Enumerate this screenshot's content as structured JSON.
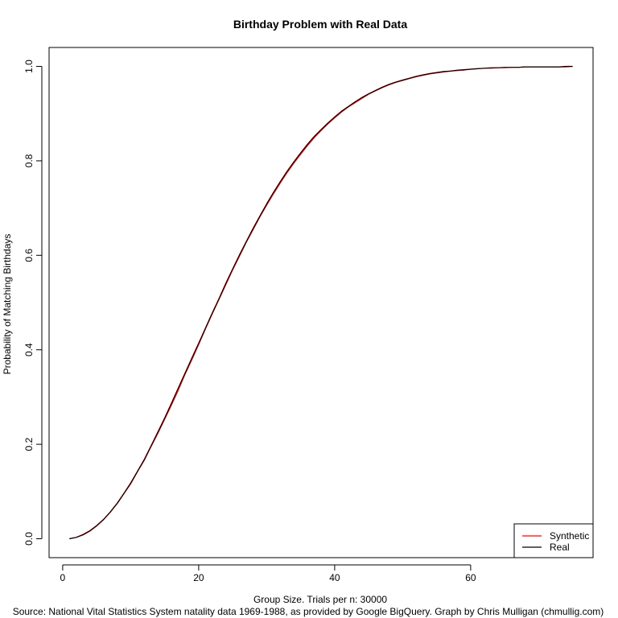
{
  "chart_data": {
    "type": "line",
    "title": "Birthday Problem with Real Data",
    "xlabel": "Group Size. Trials per n: 30000",
    "ylabel": "Probability of Matching Birthdays",
    "caption": "Source: National Vital Statistics System natality data 1969-1988, as provided by Google BigQuery.  Graph by Chris Mulligan (chmullig.com)",
    "xlim": [
      -2,
      78
    ],
    "ylim": [
      -0.04,
      1.04
    ],
    "xticks": [
      0,
      20,
      40,
      60
    ],
    "yticks": [
      0.0,
      0.2,
      0.4,
      0.6,
      0.8,
      1.0
    ],
    "xtick_labels": [
      "0",
      "20",
      "40",
      "60"
    ],
    "ytick_labels": [
      "0.0",
      "0.2",
      "0.4",
      "0.6",
      "0.8",
      "1.0"
    ],
    "grid": false,
    "legend_position": "bottom-right",
    "series": [
      {
        "name": "Synthetic",
        "color": "#ff0000",
        "x": [
          1,
          2,
          3,
          4,
          5,
          6,
          7,
          8,
          9,
          10,
          11,
          12,
          13,
          14,
          15,
          16,
          17,
          18,
          19,
          20,
          21,
          22,
          23,
          24,
          25,
          26,
          27,
          28,
          29,
          30,
          31,
          32,
          33,
          34,
          35,
          36,
          37,
          38,
          39,
          40,
          41,
          42,
          43,
          44,
          45,
          46,
          47,
          48,
          49,
          50,
          51,
          52,
          53,
          54,
          55,
          56,
          57,
          58,
          59,
          60,
          61,
          62,
          63,
          64,
          65,
          66,
          67,
          68,
          69,
          70,
          71,
          72,
          73,
          74,
          75
        ],
        "y": [
          0.0,
          0.003,
          0.008,
          0.016,
          0.027,
          0.04,
          0.056,
          0.074,
          0.095,
          0.116,
          0.142,
          0.166,
          0.195,
          0.223,
          0.253,
          0.283,
          0.314,
          0.348,
          0.379,
          0.411,
          0.444,
          0.476,
          0.507,
          0.538,
          0.569,
          0.598,
          0.627,
          0.654,
          0.681,
          0.706,
          0.73,
          0.753,
          0.775,
          0.795,
          0.814,
          0.832,
          0.849,
          0.864,
          0.878,
          0.891,
          0.903,
          0.914,
          0.923,
          0.932,
          0.941,
          0.948,
          0.955,
          0.961,
          0.966,
          0.97,
          0.974,
          0.978,
          0.981,
          0.984,
          0.986,
          0.988,
          0.99,
          0.991,
          0.992,
          0.994,
          0.995,
          0.996,
          0.996,
          0.997,
          0.997,
          0.998,
          0.998,
          0.999,
          0.999,
          0.999,
          0.999,
          0.999,
          0.999,
          0.999,
          1.0
        ]
      },
      {
        "name": "Real",
        "color": "#000000",
        "x": [
          1,
          2,
          3,
          4,
          5,
          6,
          7,
          8,
          9,
          10,
          11,
          12,
          13,
          14,
          15,
          16,
          17,
          18,
          19,
          20,
          21,
          22,
          23,
          24,
          25,
          26,
          27,
          28,
          29,
          30,
          31,
          32,
          33,
          34,
          35,
          36,
          37,
          38,
          39,
          40,
          41,
          42,
          43,
          44,
          45,
          46,
          47,
          48,
          49,
          50,
          51,
          52,
          53,
          54,
          55,
          56,
          57,
          58,
          59,
          60,
          61,
          62,
          63,
          64,
          65,
          66,
          67,
          68,
          69,
          70,
          71,
          72,
          73,
          74,
          75
        ],
        "y": [
          0.0,
          0.003,
          0.009,
          0.017,
          0.028,
          0.041,
          0.057,
          0.075,
          0.096,
          0.118,
          0.143,
          0.168,
          0.197,
          0.226,
          0.256,
          0.287,
          0.319,
          0.351,
          0.383,
          0.414,
          0.446,
          0.478,
          0.509,
          0.541,
          0.571,
          0.601,
          0.629,
          0.657,
          0.683,
          0.709,
          0.733,
          0.756,
          0.778,
          0.798,
          0.817,
          0.835,
          0.852,
          0.866,
          0.88,
          0.893,
          0.905,
          0.915,
          0.925,
          0.934,
          0.942,
          0.949,
          0.956,
          0.962,
          0.967,
          0.971,
          0.975,
          0.979,
          0.982,
          0.985,
          0.987,
          0.989,
          0.99,
          0.992,
          0.993,
          0.994,
          0.995,
          0.996,
          0.997,
          0.997,
          0.998,
          0.998,
          0.998,
          0.999,
          0.999,
          0.999,
          0.999,
          0.999,
          0.999,
          1.0,
          1.0
        ]
      }
    ]
  }
}
